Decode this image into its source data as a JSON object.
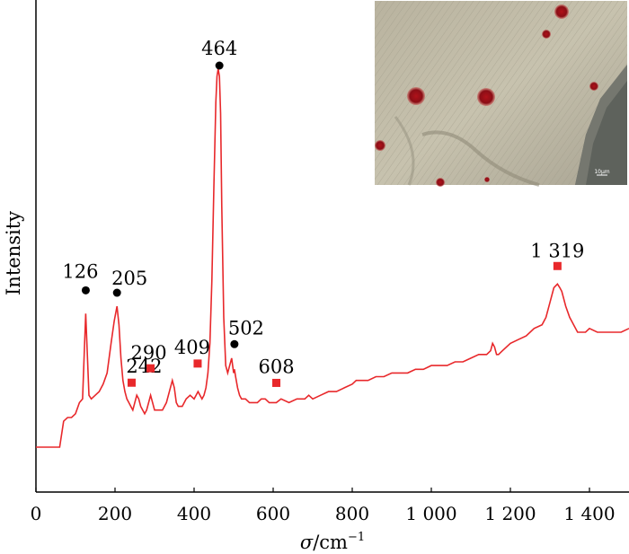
{
  "chart_data": {
    "type": "line",
    "xlabel_symbol": "σ",
    "xlabel_unit": "/cm",
    "xlabel_exp": "−1",
    "ylabel": "Intensity",
    "xlim": [
      0,
      1500
    ],
    "xticks": [
      {
        "value": 0,
        "label": "0"
      },
      {
        "value": 200,
        "label": "200"
      },
      {
        "value": 400,
        "label": "400"
      },
      {
        "value": 600,
        "label": "600"
      },
      {
        "value": 800,
        "label": "800"
      },
      {
        "value": 1000,
        "label": "1 000"
      },
      {
        "value": 1200,
        "label": "1 200"
      },
      {
        "value": 1400,
        "label": "1 400"
      }
    ],
    "line_color": "#e8282b",
    "series": [
      {
        "x": [
          0,
          60,
          70,
          80,
          90,
          100,
          110,
          118,
          122,
          126,
          130,
          134,
          140,
          150,
          160,
          170,
          180,
          190,
          198,
          205,
          210,
          215,
          220,
          225,
          230,
          235,
          240,
          245,
          250,
          255,
          260,
          265,
          270,
          275,
          280,
          285,
          290,
          295,
          300,
          310,
          320,
          330,
          340,
          345,
          350,
          355,
          360,
          370,
          380,
          390,
          400,
          405,
          410,
          415,
          420,
          425,
          430,
          435,
          440,
          445,
          450,
          455,
          458,
          461,
          464,
          467,
          470,
          475,
          480,
          485,
          490,
          495,
          500,
          502,
          505,
          510,
          515,
          520,
          530,
          540,
          550,
          560,
          570,
          580,
          590,
          600,
          608,
          620,
          640,
          660,
          680,
          690,
          700,
          720,
          740,
          760,
          780,
          800,
          810,
          820,
          840,
          860,
          880,
          900,
          920,
          940,
          960,
          980,
          1000,
          1020,
          1040,
          1060,
          1080,
          1100,
          1120,
          1140,
          1150,
          1155,
          1160,
          1165,
          1170,
          1180,
          1200,
          1220,
          1240,
          1260,
          1280,
          1290,
          1300,
          1310,
          1319,
          1325,
          1330,
          1340,
          1350,
          1360,
          1370,
          1380,
          1390,
          1400,
          1420,
          1440,
          1460,
          1480,
          1500
        ],
        "y": [
          0,
          0,
          0.07,
          0.08,
          0.08,
          0.09,
          0.12,
          0.13,
          0.25,
          0.36,
          0.25,
          0.14,
          0.13,
          0.14,
          0.15,
          0.17,
          0.2,
          0.28,
          0.34,
          0.38,
          0.33,
          0.24,
          0.18,
          0.15,
          0.13,
          0.12,
          0.11,
          0.1,
          0.12,
          0.14,
          0.13,
          0.11,
          0.1,
          0.09,
          0.1,
          0.12,
          0.14,
          0.12,
          0.1,
          0.1,
          0.1,
          0.12,
          0.16,
          0.18,
          0.16,
          0.12,
          0.11,
          0.11,
          0.13,
          0.14,
          0.13,
          0.14,
          0.15,
          0.14,
          0.13,
          0.14,
          0.16,
          0.2,
          0.28,
          0.45,
          0.7,
          0.93,
          1.0,
          1.02,
          1.0,
          0.9,
          0.65,
          0.35,
          0.22,
          0.2,
          0.22,
          0.24,
          0.2,
          0.21,
          0.19,
          0.16,
          0.14,
          0.13,
          0.13,
          0.12,
          0.12,
          0.12,
          0.13,
          0.13,
          0.12,
          0.12,
          0.12,
          0.13,
          0.12,
          0.13,
          0.13,
          0.14,
          0.13,
          0.14,
          0.15,
          0.15,
          0.16,
          0.17,
          0.18,
          0.18,
          0.18,
          0.19,
          0.19,
          0.2,
          0.2,
          0.2,
          0.21,
          0.21,
          0.22,
          0.22,
          0.22,
          0.23,
          0.23,
          0.24,
          0.25,
          0.25,
          0.26,
          0.28,
          0.27,
          0.25,
          0.25,
          0.26,
          0.28,
          0.29,
          0.3,
          0.32,
          0.33,
          0.35,
          0.39,
          0.43,
          0.44,
          0.43,
          0.42,
          0.38,
          0.35,
          0.33,
          0.31,
          0.31,
          0.31,
          0.32,
          0.31,
          0.31,
          0.31,
          0.31,
          0.32
        ]
      }
    ],
    "peaks": [
      {
        "x": 126,
        "label": "126",
        "marker": "circle"
      },
      {
        "x": 205,
        "label": "205",
        "marker": "circle"
      },
      {
        "x": 242,
        "label": "242",
        "marker": "square"
      },
      {
        "x": 290,
        "label": "290",
        "marker": "square"
      },
      {
        "x": 409,
        "label": "409",
        "marker": "square"
      },
      {
        "x": 464,
        "label": "464",
        "marker": "circle"
      },
      {
        "x": 502,
        "label": "502",
        "marker": "circle"
      },
      {
        "x": 608,
        "label": "608",
        "marker": "square"
      },
      {
        "x": 1319,
        "label": "1 319",
        "marker": "square"
      }
    ],
    "marker_colors": {
      "circle": "#000000",
      "square": "#e8282b"
    },
    "grid": false
  },
  "inset": {
    "scale_label": "10μm"
  }
}
